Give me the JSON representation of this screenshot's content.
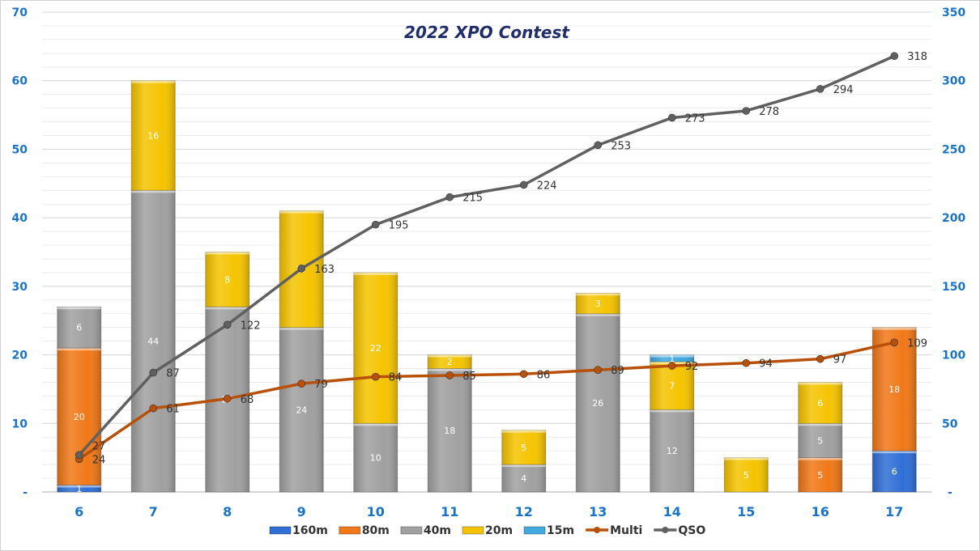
{
  "chart_data": {
    "type": "bar",
    "title": "2022 XPO Contest",
    "categories": [
      "6",
      "7",
      "8",
      "9",
      "10",
      "11",
      "12",
      "13",
      "14",
      "15",
      "16",
      "17"
    ],
    "left_axis": {
      "ylim": [
        0,
        70
      ],
      "ticks": [
        "-",
        "10",
        "20",
        "30",
        "40",
        "50",
        "60",
        "70"
      ]
    },
    "right_axis": {
      "ylim": [
        0,
        350
      ],
      "ticks": [
        "-",
        "50",
        "100",
        "150",
        "200",
        "250",
        "300",
        "350"
      ]
    },
    "grid": true,
    "legend_position": "bottom",
    "bar_series": [
      {
        "name": "160m",
        "color": "#2f6fd6",
        "values": [
          1,
          0,
          0,
          0,
          0,
          0,
          0,
          0,
          0,
          0,
          0,
          6
        ]
      },
      {
        "name": "80m",
        "color": "#f07818",
        "values": [
          20,
          0,
          0,
          0,
          0,
          0,
          0,
          0,
          0,
          0,
          5,
          18
        ]
      },
      {
        "name": "40m",
        "color": "#a0a0a0",
        "values": [
          6,
          44,
          27,
          24,
          10,
          18,
          4,
          26,
          12,
          0,
          5,
          0
        ]
      },
      {
        "name": "20m",
        "color": "#f5c400",
        "values": [
          0,
          16,
          8,
          17,
          22,
          2,
          5,
          3,
          7,
          5,
          6,
          0
        ]
      },
      {
        "name": "15m",
        "color": "#3fa9e0",
        "values": [
          0,
          0,
          0,
          0,
          0,
          0,
          0,
          0,
          1,
          0,
          0,
          0
        ]
      }
    ],
    "line_series": [
      {
        "name": "Multi",
        "color": "#b8500a",
        "axis": "right",
        "values": [
          24,
          61,
          68,
          79,
          84,
          85,
          86,
          89,
          92,
          94,
          97,
          109
        ]
      },
      {
        "name": "QSO",
        "color": "#606060",
        "axis": "right",
        "values": [
          27,
          87,
          122,
          163,
          195,
          215,
          224,
          253,
          273,
          278,
          294,
          318
        ]
      }
    ]
  }
}
